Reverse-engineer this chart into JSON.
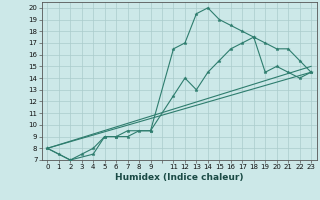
{
  "title": "",
  "xlabel": "Humidex (Indice chaleur)",
  "bg_color": "#cce8e8",
  "grid_color": "#aacccc",
  "line_color": "#2e7d6e",
  "xlim": [
    -0.5,
    23.5
  ],
  "ylim": [
    7,
    20.5
  ],
  "yticks": [
    7,
    8,
    9,
    10,
    11,
    12,
    13,
    14,
    15,
    16,
    17,
    18,
    19,
    20
  ],
  "curve1_x": [
    0,
    1,
    2,
    3,
    4,
    5,
    6,
    7,
    9,
    11,
    12,
    13,
    14,
    15,
    16,
    17,
    18,
    19,
    20,
    21,
    22,
    23
  ],
  "curve1_y": [
    8,
    7.5,
    7,
    7.5,
    8,
    9,
    9,
    9.5,
    9.5,
    12.5,
    14,
    13,
    14.5,
    15.5,
    16.5,
    17,
    17.5,
    14.5,
    15,
    14.5,
    14,
    14.5
  ],
  "curve2_x": [
    0,
    2,
    4,
    5,
    6,
    7,
    8,
    9,
    11,
    12,
    13,
    14,
    15,
    16,
    17,
    18,
    19,
    20,
    21,
    22,
    23
  ],
  "curve2_y": [
    8,
    7,
    7.5,
    9,
    9,
    9,
    9.5,
    9.5,
    16.5,
    17,
    19.5,
    20,
    19,
    18.5,
    18,
    17.5,
    17,
    16.5,
    16.5,
    15.5,
    14.5
  ],
  "line3_x": [
    0,
    23
  ],
  "line3_y": [
    8,
    15
  ],
  "line4_x": [
    0,
    23
  ],
  "line4_y": [
    8,
    14.5
  ]
}
